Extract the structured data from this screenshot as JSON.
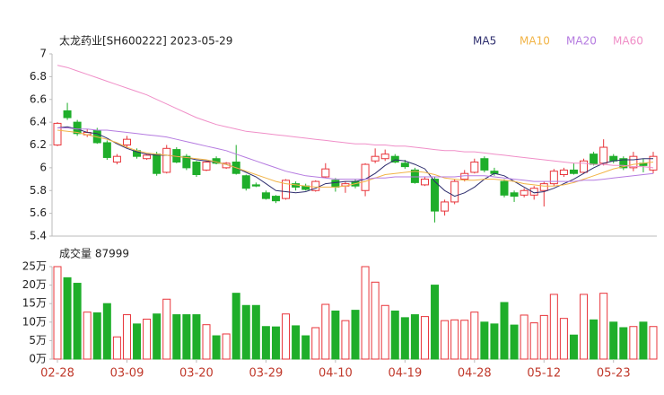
{
  "chart_data": {
    "type": "candlestick",
    "title": "太龙药业[SH600222] 2023-05-29",
    "categories": [
      "02-28",
      null,
      null,
      null,
      null,
      null,
      null,
      "03-09",
      null,
      null,
      null,
      null,
      null,
      null,
      "03-20",
      null,
      null,
      null,
      null,
      null,
      null,
      "03-29",
      null,
      null,
      null,
      null,
      null,
      null,
      "04-10",
      null,
      null,
      null,
      null,
      null,
      null,
      "04-19",
      null,
      null,
      null,
      null,
      null,
      null,
      "04-28",
      null,
      null,
      null,
      null,
      null,
      null,
      "05-12",
      null,
      null,
      null,
      null,
      null,
      null,
      "05-23",
      null,
      null,
      null,
      null
    ],
    "open": [
      6.2,
      6.5,
      6.4,
      6.29,
      6.33,
      6.22,
      6.05,
      6.2,
      6.15,
      6.08,
      6.12,
      5.96,
      6.16,
      6.1,
      6.05,
      5.98,
      6.08,
      6.0,
      6.05,
      5.93,
      5.85,
      5.78,
      5.75,
      5.73,
      5.86,
      5.84,
      5.8,
      5.92,
      5.89,
      5.84,
      5.88,
      5.8,
      6.06,
      6.08,
      6.1,
      6.04,
      5.98,
      5.85,
      5.9,
      5.62,
      5.7,
      5.9,
      5.96,
      6.08,
      5.97,
      5.88,
      5.78,
      5.76,
      5.76,
      5.8,
      5.86,
      5.94,
      5.98,
      5.96,
      6.12,
      6.04,
      6.1,
      6.08,
      6.0,
      6.04,
      5.98
    ],
    "high": [
      6.4,
      6.57,
      6.42,
      6.34,
      6.35,
      6.24,
      6.12,
      6.28,
      6.17,
      6.12,
      6.14,
      6.2,
      6.18,
      6.12,
      6.06,
      6.06,
      6.1,
      6.05,
      6.2,
      5.94,
      5.87,
      5.8,
      5.76,
      5.9,
      5.88,
      5.86,
      5.89,
      6.04,
      5.91,
      5.88,
      5.9,
      6.04,
      6.17,
      6.16,
      6.12,
      6.07,
      6.0,
      5.92,
      5.92,
      5.72,
      5.9,
      5.98,
      6.08,
      6.1,
      6.0,
      5.9,
      5.8,
      5.82,
      5.84,
      5.88,
      5.99,
      6.0,
      6.04,
      6.08,
      6.14,
      6.25,
      6.12,
      6.1,
      6.14,
      6.08,
      6.14
    ],
    "low": [
      6.19,
      6.42,
      6.28,
      6.27,
      6.21,
      6.07,
      6.03,
      6.17,
      6.08,
      6.07,
      5.93,
      5.95,
      6.04,
      5.98,
      5.92,
      5.97,
      6.03,
      5.99,
      5.94,
      5.8,
      5.83,
      5.72,
      5.69,
      5.72,
      5.8,
      5.8,
      5.79,
      5.91,
      5.79,
      5.78,
      5.82,
      5.75,
      6.04,
      6.06,
      6.04,
      5.99,
      5.86,
      5.84,
      5.52,
      5.58,
      5.68,
      5.88,
      5.95,
      5.96,
      5.93,
      5.74,
      5.7,
      5.74,
      5.72,
      5.66,
      5.84,
      5.92,
      5.94,
      5.95,
      6.02,
      6.02,
      6.04,
      5.98,
      5.97,
      5.96,
      5.95
    ],
    "close": [
      6.39,
      6.44,
      6.3,
      6.31,
      6.22,
      6.09,
      6.1,
      6.25,
      6.1,
      6.11,
      5.95,
      6.17,
      6.05,
      6.0,
      5.94,
      6.05,
      6.04,
      6.04,
      5.95,
      5.82,
      5.84,
      5.73,
      5.71,
      5.89,
      5.83,
      5.81,
      5.88,
      5.99,
      5.83,
      5.86,
      5.84,
      6.03,
      6.1,
      6.12,
      6.05,
      6.01,
      5.87,
      5.9,
      5.62,
      5.7,
      5.88,
      5.95,
      6.05,
      5.98,
      5.95,
      5.76,
      5.75,
      5.8,
      5.82,
      5.86,
      5.97,
      5.98,
      5.95,
      6.06,
      6.03,
      6.18,
      6.06,
      6.0,
      6.1,
      6.02,
      6.1
    ],
    "up_color": "#e8343a",
    "down_color": "#1fae2a",
    "ylim": [
      5.4,
      7
    ],
    "yticks": [
      5.4,
      5.6,
      5.8,
      6,
      6.2,
      6.4,
      6.6,
      6.8,
      7
    ],
    "grid": false,
    "ma_series": [
      {
        "name": "MA5",
        "color": "#2e2e6e",
        "values": [
          6.35,
          6.36,
          6.34,
          6.31,
          6.3,
          6.26,
          6.21,
          6.17,
          6.14,
          6.12,
          6.11,
          6.11,
          6.1,
          6.09,
          6.07,
          6.06,
          6.05,
          6.03,
          6.0,
          5.96,
          5.92,
          5.86,
          5.8,
          5.79,
          5.78,
          5.79,
          5.82,
          5.86,
          5.87,
          5.88,
          5.88,
          5.9,
          5.95,
          6.02,
          6.07,
          6.06,
          6.03,
          5.99,
          5.88,
          5.8,
          5.75,
          5.78,
          5.83,
          5.9,
          5.95,
          5.93,
          5.88,
          5.83,
          5.78,
          5.79,
          5.82,
          5.86,
          5.9,
          5.95,
          6.0,
          6.04,
          6.06,
          6.07,
          6.07,
          6.08,
          6.08
        ]
      },
      {
        "name": "MA10",
        "color": "#f2b447",
        "values": [
          6.33,
          6.32,
          6.31,
          6.29,
          6.27,
          6.25,
          6.22,
          6.18,
          6.15,
          6.13,
          6.12,
          6.11,
          6.1,
          6.09,
          6.08,
          6.07,
          6.05,
          6.03,
          6.0,
          5.97,
          5.94,
          5.91,
          5.88,
          5.86,
          5.85,
          5.84,
          5.83,
          5.83,
          5.83,
          5.84,
          5.86,
          5.88,
          5.91,
          5.94,
          5.95,
          5.96,
          5.97,
          5.96,
          5.94,
          5.91,
          5.9,
          5.89,
          5.89,
          5.9,
          5.9,
          5.89,
          5.88,
          5.86,
          5.85,
          5.84,
          5.84,
          5.85,
          5.87,
          5.9,
          5.93,
          5.96,
          5.99,
          6.01,
          6.03,
          6.04,
          6.05
        ]
      },
      {
        "name": "MA20",
        "color": "#b57be0",
        "values": [
          6.35,
          6.35,
          6.34,
          6.34,
          6.33,
          6.33,
          6.32,
          6.31,
          6.3,
          6.29,
          6.28,
          6.27,
          6.25,
          6.23,
          6.21,
          6.19,
          6.17,
          6.15,
          6.12,
          6.09,
          6.06,
          6.03,
          6.0,
          5.97,
          5.95,
          5.93,
          5.92,
          5.91,
          5.9,
          5.9,
          5.9,
          5.9,
          5.91,
          5.91,
          5.92,
          5.92,
          5.92,
          5.92,
          5.92,
          5.92,
          5.92,
          5.93,
          5.93,
          5.93,
          5.92,
          5.91,
          5.9,
          5.89,
          5.88,
          5.88,
          5.88,
          5.88,
          5.88,
          5.89,
          5.89,
          5.9,
          5.91,
          5.92,
          5.93,
          5.94,
          5.95
        ]
      },
      {
        "name": "MA60",
        "color": "#f08fc8",
        "values": [
          6.9,
          6.88,
          6.85,
          6.82,
          6.79,
          6.76,
          6.73,
          6.7,
          6.67,
          6.64,
          6.6,
          6.56,
          6.52,
          6.48,
          6.44,
          6.41,
          6.38,
          6.36,
          6.34,
          6.32,
          6.31,
          6.3,
          6.29,
          6.28,
          6.27,
          6.26,
          6.25,
          6.24,
          6.23,
          6.22,
          6.21,
          6.21,
          6.2,
          6.2,
          6.19,
          6.19,
          6.18,
          6.17,
          6.16,
          6.15,
          6.15,
          6.14,
          6.14,
          6.13,
          6.12,
          6.11,
          6.1,
          6.09,
          6.08,
          6.07,
          6.06,
          6.05,
          6.04,
          6.04,
          6.03,
          6.03,
          6.02,
          6.02,
          6.01,
          6.01,
          6.0
        ]
      }
    ],
    "volume": {
      "title": "成交量 87999",
      "values": [
        25.0,
        22.0,
        20.5,
        12.7,
        12.5,
        15.0,
        6.0,
        12.0,
        9.5,
        10.8,
        12.2,
        16.2,
        12.0,
        12.0,
        12.0,
        9.3,
        6.3,
        6.8,
        17.8,
        14.5,
        14.5,
        8.8,
        8.7,
        12.2,
        9.0,
        6.3,
        8.5,
        14.8,
        13.0,
        10.4,
        13.2,
        25.0,
        20.8,
        14.5,
        13.0,
        11.2,
        12.0,
        11.5,
        20.0,
        10.4,
        10.6,
        10.5,
        12.7,
        10.0,
        9.5,
        15.3,
        9.2,
        11.9,
        9.8,
        11.8,
        17.5,
        11.0,
        6.5,
        17.5,
        10.6,
        17.8,
        10.0,
        8.5,
        8.8,
        10.0,
        8.8
      ],
      "ylim": [
        0,
        25
      ],
      "yticks": [
        {
          "value": 0,
          "label": "0万"
        },
        {
          "value": 5,
          "label": "5万"
        },
        {
          "value": 10,
          "label": "10万"
        },
        {
          "value": 15,
          "label": "15万"
        },
        {
          "value": 20,
          "label": "20万"
        },
        {
          "value": 25,
          "label": "25万"
        }
      ]
    }
  }
}
